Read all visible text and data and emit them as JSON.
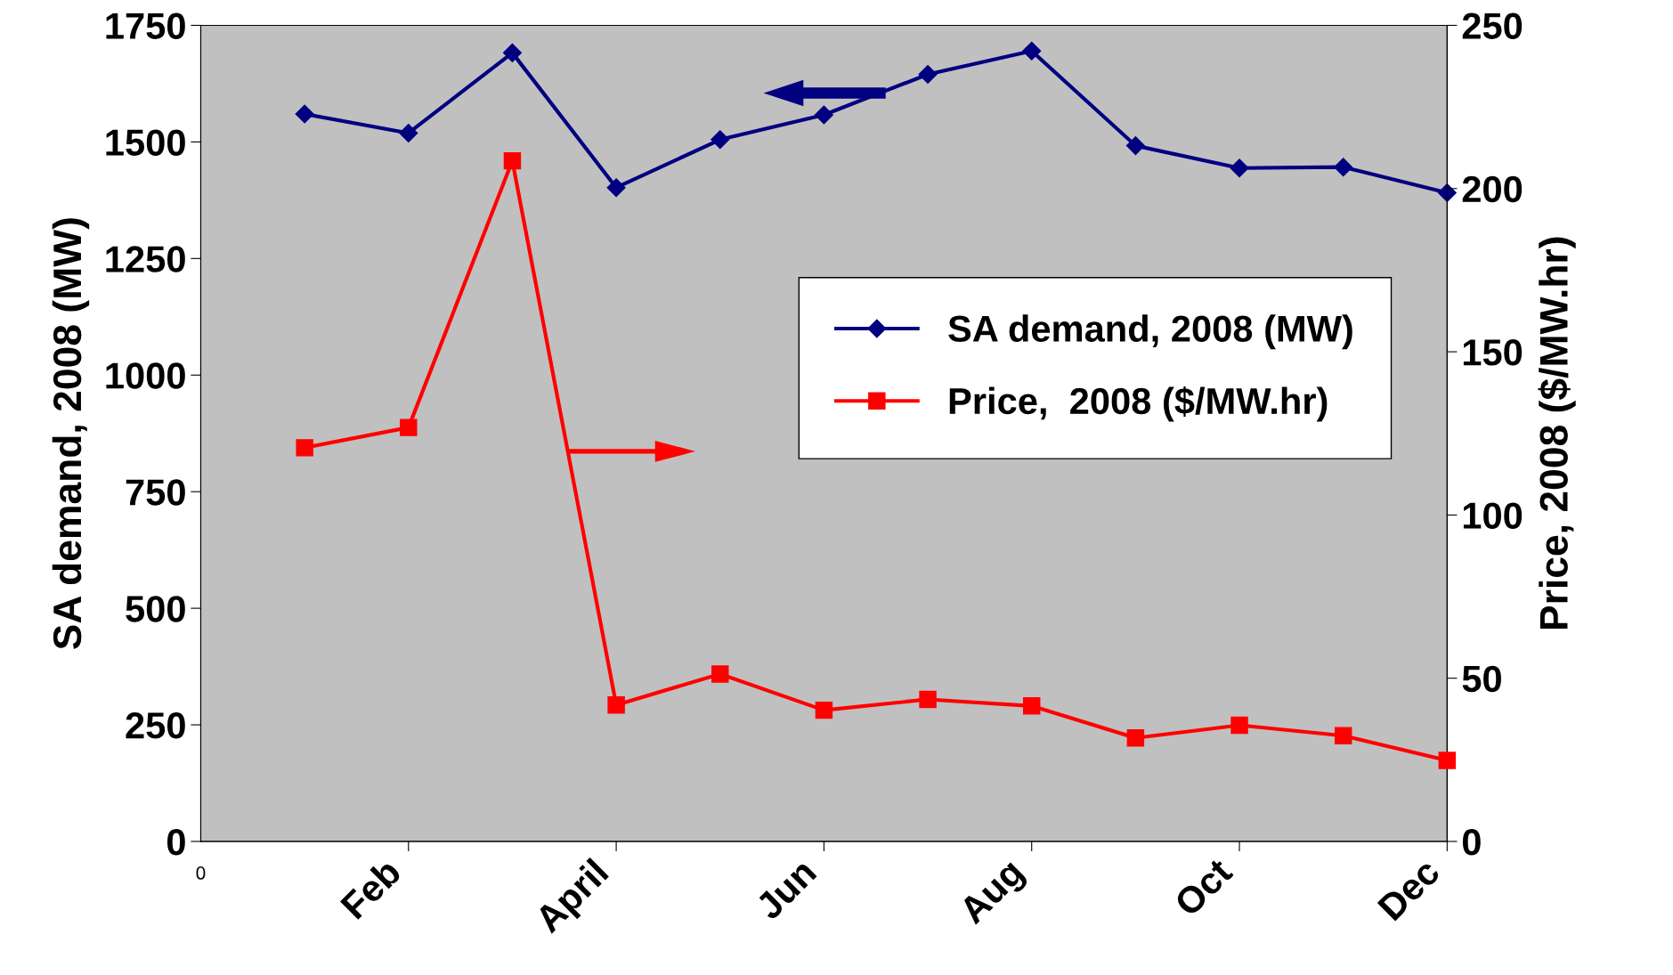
{
  "chart_data": {
    "type": "line",
    "categories": [
      null,
      "Feb",
      null,
      "April",
      null,
      "Jun",
      null,
      "Aug",
      null,
      "Oct",
      null,
      "Dec"
    ],
    "annotations": [
      "0"
    ],
    "ylabel": "SA demand, 2008 (MW)",
    "y2label": "Price, 2008 ($/MW.hr)",
    "ylim": [
      0,
      1750
    ],
    "yticks": [
      0,
      250,
      500,
      750,
      1000,
      1250,
      1500,
      1750
    ],
    "y2lim": [
      0,
      250
    ],
    "y2ticks": [
      0,
      50,
      100,
      150,
      200,
      250
    ],
    "series": [
      {
        "name": "SA demand, 2008 (MW)",
        "color": "#000080",
        "marker": "diamond",
        "values": [
          1560,
          1519,
          1691,
          1402,
          1505,
          1558,
          1645,
          1695,
          1492,
          1444,
          1446,
          1391
        ]
      },
      {
        "name": "Price,  2008 ($/MW.hr)",
        "color": "#ff0000",
        "marker": "square",
        "axis": "y2",
        "values": [
          120.6,
          126.8,
          208.5,
          41.8,
          51.3,
          40.2,
          43.5,
          41.5,
          31.7,
          35.6,
          32.4,
          24.8
        ]
      }
    ],
    "legend": "center right",
    "grid": false
  }
}
